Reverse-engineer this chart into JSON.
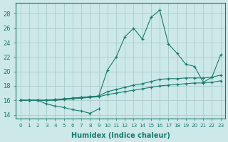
{
  "xlabel": "Humidex (Indice chaleur)",
  "bg_color": "#cce8e8",
  "grid_color": "#aacccc",
  "line_color": "#1a7a6e",
  "xlim": [
    -0.5,
    23.5
  ],
  "ylim": [
    13.5,
    29.5
  ],
  "yticks": [
    14,
    16,
    18,
    20,
    22,
    24,
    26,
    28
  ],
  "xticks": [
    0,
    1,
    2,
    3,
    4,
    5,
    6,
    7,
    8,
    9,
    10,
    11,
    12,
    13,
    14,
    15,
    16,
    17,
    18,
    19,
    20,
    21,
    22,
    23
  ],
  "lines": [
    {
      "x": [
        0,
        1,
        2,
        3,
        4,
        5,
        6,
        7,
        8,
        9
      ],
      "y": [
        16,
        16,
        16,
        15.5,
        15.2,
        15.0,
        14.7,
        14.5,
        14.2,
        14.8
      ]
    },
    {
      "x": [
        0,
        1,
        2,
        3,
        4,
        5,
        6,
        7,
        8,
        9,
        10,
        11,
        12,
        13,
        14,
        15,
        16,
        17,
        18,
        19,
        20,
        21,
        22,
        23
      ],
      "y": [
        16,
        16,
        16,
        16,
        16.0,
        16.1,
        16.2,
        16.3,
        16.4,
        16.5,
        16.8,
        17.0,
        17.2,
        17.4,
        17.6,
        17.8,
        18.0,
        18.1,
        18.2,
        18.3,
        18.4,
        18.4,
        18.5,
        18.7
      ]
    },
    {
      "x": [
        0,
        1,
        2,
        3,
        4,
        5,
        6,
        7,
        8,
        9,
        10,
        11,
        12,
        13,
        14,
        15,
        16,
        17,
        18,
        19,
        20,
        21,
        22,
        23
      ],
      "y": [
        16,
        16,
        16,
        16,
        16.1,
        16.2,
        16.3,
        16.4,
        16.5,
        16.6,
        17.2,
        17.5,
        17.8,
        18.1,
        18.3,
        18.6,
        18.9,
        19.0,
        19.0,
        19.1,
        19.1,
        19.1,
        19.2,
        19.5
      ]
    },
    {
      "x": [
        0,
        1,
        2,
        3,
        4,
        5,
        6,
        7,
        8,
        9,
        10,
        11,
        12,
        13,
        14,
        15,
        16,
        17,
        18,
        19,
        20,
        21,
        22,
        23
      ],
      "y": [
        16,
        16,
        16,
        16,
        16.1,
        16.2,
        16.3,
        16.4,
        16.5,
        16.6,
        20.2,
        22.0,
        24.8,
        26.0,
        24.5,
        27.5,
        28.5,
        23.8,
        22.5,
        21.0,
        20.7,
        18.5,
        19.2,
        22.3
      ]
    }
  ]
}
